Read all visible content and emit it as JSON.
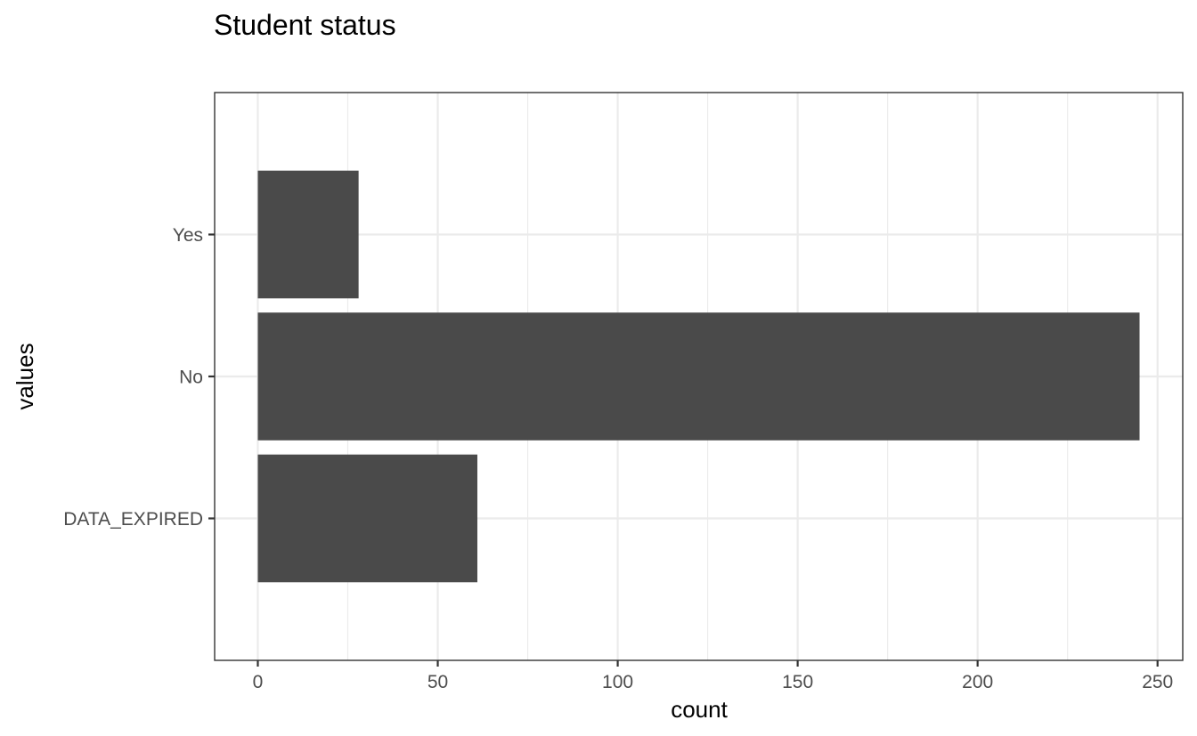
{
  "chart_data": {
    "type": "bar",
    "orientation": "horizontal",
    "title": "Student status",
    "xlabel": "count",
    "ylabel": "values",
    "categories": [
      "DATA_EXPIRED",
      "No",
      "Yes"
    ],
    "values": [
      61,
      245,
      28
    ],
    "xlim": [
      -12,
      257
    ],
    "x_ticks": [
      0,
      50,
      100,
      150,
      200,
      250
    ],
    "x_minor_ticks": [
      25,
      75,
      125,
      175,
      225
    ],
    "grid": true,
    "legend": "none",
    "bar_color": "#4a4a4a",
    "theme": "bw"
  }
}
